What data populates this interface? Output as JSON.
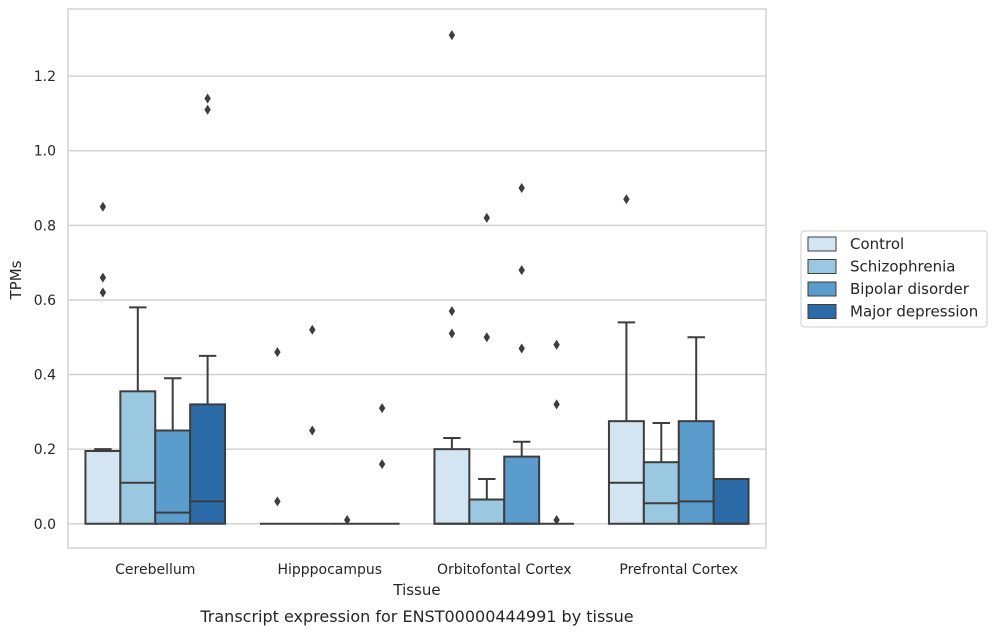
{
  "caption": "Transcript expression for ENST00000444991 by tissue",
  "chart_data": {
    "type": "box",
    "xlabel": "Tissue",
    "ylabel": "TPMs",
    "ylim": [
      -0.065,
      1.38
    ],
    "yticks": [
      "0.0",
      "0.2",
      "0.4",
      "0.6",
      "0.8",
      "1.0",
      "1.2"
    ],
    "grid": true,
    "legend_position": "right",
    "categories": [
      "Cerebellum",
      "Hipppocampus",
      "Orbitofontal Cortex",
      "Prefrontal Cortex"
    ],
    "series": [
      {
        "name": "Control",
        "color": "#d3e4f3",
        "boxes": [
          {
            "min": 0.0,
            "q1": 0.0,
            "median": 0.195,
            "q3": 0.195,
            "max": 0.2,
            "outliers": [
              0.85,
              0.66,
              0.62
            ]
          },
          {
            "min": 0.0,
            "q1": 0.0,
            "median": 0.0,
            "q3": 0.0,
            "max": 0.0,
            "outliers": [
              0.46,
              0.06
            ]
          },
          {
            "min": 0.0,
            "q1": 0.0,
            "median": 0.0,
            "q3": 0.2,
            "max": 0.23,
            "outliers": [
              1.31,
              0.57,
              0.51
            ]
          },
          {
            "min": 0.0,
            "q1": 0.0,
            "median": 0.11,
            "q3": 0.275,
            "max": 0.54,
            "outliers": [
              0.87
            ]
          }
        ]
      },
      {
        "name": "Schizophrenia",
        "color": "#9ac8e0",
        "boxes": [
          {
            "min": 0.0,
            "q1": 0.0,
            "median": 0.11,
            "q3": 0.355,
            "max": 0.58,
            "outliers": []
          },
          {
            "min": 0.0,
            "q1": 0.0,
            "median": 0.0,
            "q3": 0.0,
            "max": 0.0,
            "outliers": [
              0.52,
              0.25
            ]
          },
          {
            "min": 0.0,
            "q1": 0.0,
            "median": 0.0,
            "q3": 0.065,
            "max": 0.12,
            "outliers": [
              0.82,
              0.5
            ]
          },
          {
            "min": 0.0,
            "q1": 0.0,
            "median": 0.055,
            "q3": 0.165,
            "max": 0.27,
            "outliers": []
          }
        ]
      },
      {
        "name": "Bipolar disorder",
        "color": "#5a9dcd",
        "boxes": [
          {
            "min": 0.0,
            "q1": 0.0,
            "median": 0.03,
            "q3": 0.25,
            "max": 0.39,
            "outliers": []
          },
          {
            "min": 0.0,
            "q1": 0.0,
            "median": 0.0,
            "q3": 0.0,
            "max": 0.0,
            "outliers": [
              0.01
            ]
          },
          {
            "min": 0.0,
            "q1": 0.0,
            "median": 0.0,
            "q3": 0.18,
            "max": 0.22,
            "outliers": [
              0.9,
              0.68,
              0.47
            ]
          },
          {
            "min": 0.0,
            "q1": 0.0,
            "median": 0.06,
            "q3": 0.275,
            "max": 0.5,
            "outliers": []
          }
        ]
      },
      {
        "name": "Major depression",
        "color": "#2b6ba8",
        "boxes": [
          {
            "min": 0.0,
            "q1": 0.0,
            "median": 0.06,
            "q3": 0.32,
            "max": 0.45,
            "outliers": [
              1.14,
              1.11
            ]
          },
          {
            "min": 0.0,
            "q1": 0.0,
            "median": 0.0,
            "q3": 0.0,
            "max": 0.0,
            "outliers": [
              0.31,
              0.16
            ]
          },
          {
            "min": 0.0,
            "q1": 0.0,
            "median": 0.0,
            "q3": 0.0,
            "max": 0.0,
            "outliers": [
              0.48,
              0.32,
              0.01
            ]
          },
          {
            "min": 0.0,
            "q1": 0.0,
            "median": 0.0,
            "q3": 0.12,
            "max": 0.12,
            "outliers": []
          }
        ]
      }
    ]
  }
}
